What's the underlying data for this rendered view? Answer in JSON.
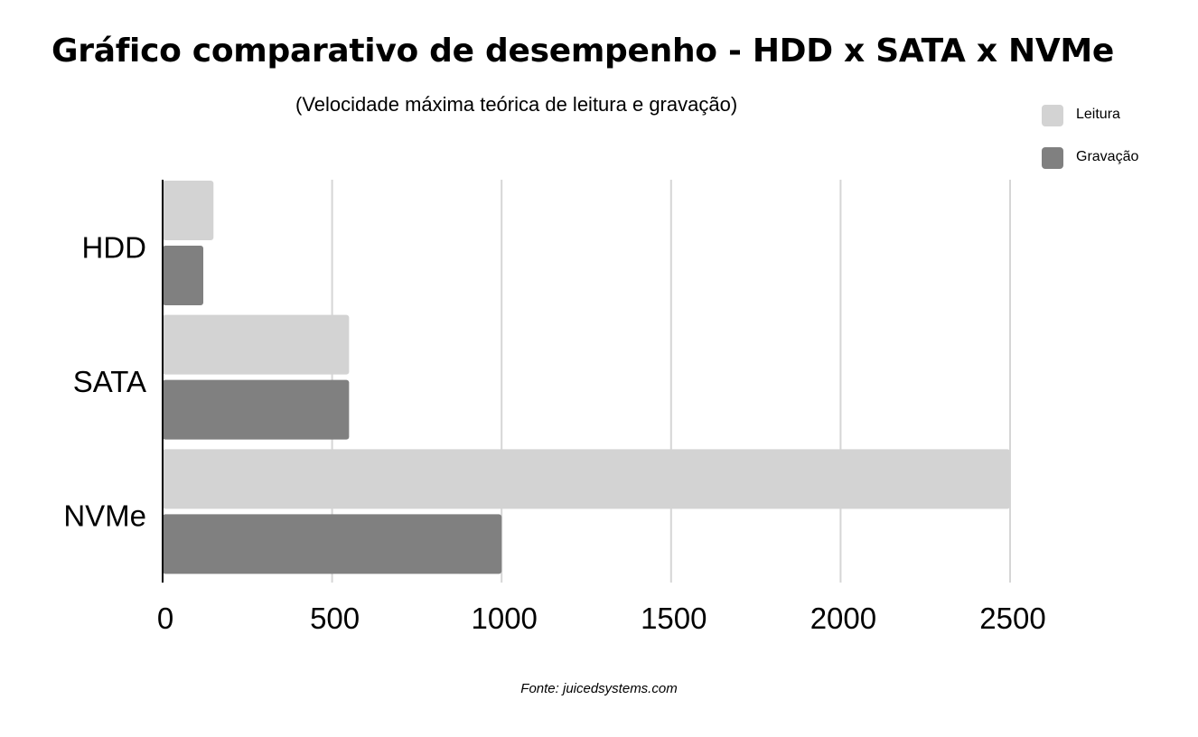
{
  "title": "Gráfico comparativo de desempenho - HDD x SATA x NVMe",
  "subtitle": "(Velocidade máxima teórica de leitura e gravação)",
  "source": "Fonte: juicedsystems.com",
  "colors": {
    "leitura": "#d3d3d3",
    "gravacao": "#808080",
    "grid": "#d6d6d6",
    "axis": "#000000"
  },
  "chart_data": {
    "type": "bar",
    "orientation": "horizontal",
    "title": "Gráfico comparativo de desempenho - HDD x SATA x NVMe",
    "subtitle": "(Velocidade máxima teórica de leitura e gravação)",
    "categories": [
      "HDD",
      "SATA",
      "NVMe"
    ],
    "series": [
      {
        "name": "Leitura",
        "values": [
          150,
          550,
          2500
        ]
      },
      {
        "name": "Gravação",
        "values": [
          120,
          550,
          1000
        ]
      }
    ],
    "xticks": [
      0,
      500,
      1000,
      1500,
      2000,
      2500
    ],
    "xlim": [
      0,
      2500
    ],
    "xlabel": "",
    "ylabel": "",
    "grid": true,
    "legend": "top-right"
  }
}
